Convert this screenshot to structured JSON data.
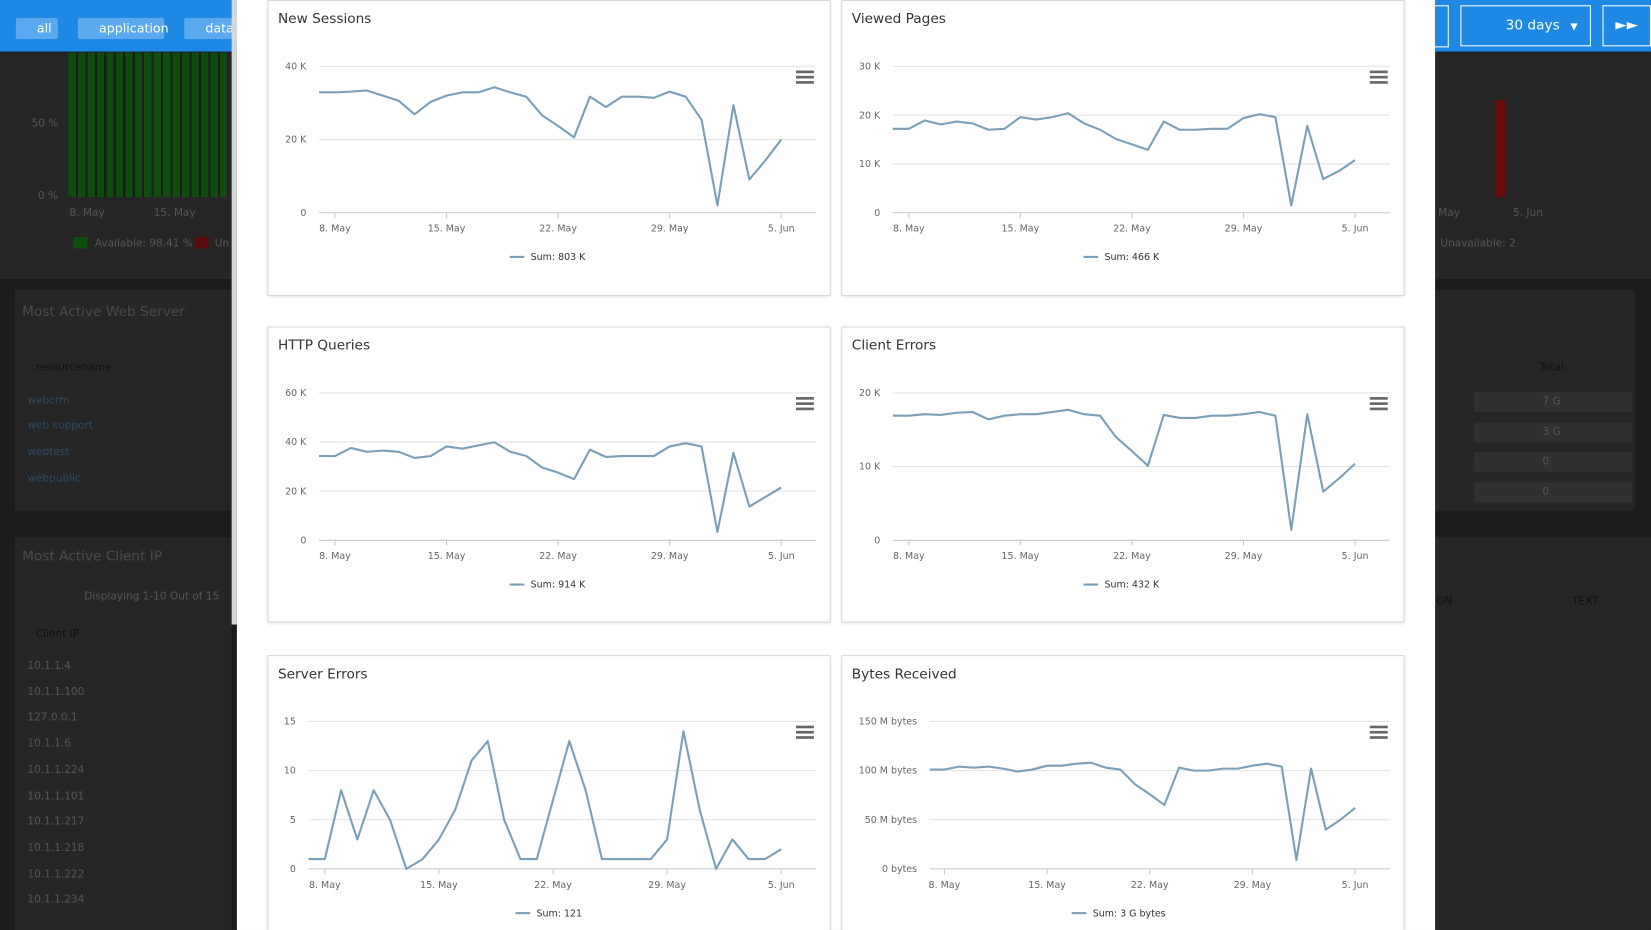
{
  "background": {
    "tags": [
      "all",
      "application",
      "datab"
    ],
    "range": "30 days",
    "availability": {
      "yticks": [
        "50 %",
        "0 %"
      ],
      "xticks": [
        "8. May",
        "15. May"
      ],
      "legend": [
        "Available: 98.41 %",
        "Un"
      ],
      "right_xticks": [
        "May",
        "5. Jun"
      ],
      "right_legend": "Unavailable: 2"
    },
    "web_server": {
      "title": "Most Active Web Server",
      "column": "resourcename",
      "rows": [
        "webcrm",
        "web support",
        "webtest",
        "webpublic"
      ],
      "total_header": "Total",
      "totals": [
        "7 G",
        "3 G",
        "0",
        "0"
      ]
    },
    "client_ip": {
      "title": "Most Active Client IP",
      "paging": "Displaying 1-10 Out of 15",
      "column": "Client IP",
      "rows": [
        "10.1.1.4",
        "10.1.1.100",
        "127.0.0.1",
        "10.1.1.6",
        "10.1.1.224",
        "10.1.1.101",
        "10.1.1.217",
        "10.1.1.218",
        "10.1.1.222",
        "10.1.1.234"
      ],
      "right_columns": [
        "ON",
        "TEXT"
      ]
    }
  },
  "chart_data": [
    {
      "type": "line",
      "title": "New Sessions",
      "categories": [
        null,
        "8. May",
        null,
        null,
        null,
        null,
        null,
        null,
        "15. May",
        null,
        null,
        null,
        null,
        null,
        null,
        "22. May",
        null,
        null,
        null,
        null,
        null,
        null,
        "29. May",
        null,
        null,
        null,
        null,
        null,
        null,
        "5. Jun"
      ],
      "series": [
        {
          "name": "Sum: 803 K",
          "color": "#7b9fb6",
          "values": [
            32900,
            32900,
            33100,
            33400,
            32000,
            30600,
            26900,
            30300,
            32000,
            32900,
            32900,
            34300,
            32900,
            31700,
            26600,
            23700,
            20600,
            31700,
            28900,
            31700,
            31700,
            31400,
            33100,
            31700,
            25400,
            2000,
            29400,
            9100,
            14300,
            20000
          ]
        }
      ],
      "ylim": [
        0,
        40000
      ],
      "yticks": [
        0,
        {
          "value": 20000,
          "label": "20 K"
        },
        {
          "value": 40000,
          "label": "40 K"
        }
      ],
      "grid": true,
      "legend": "bottom"
    },
    {
      "type": "line",
      "title": "Viewed Pages",
      "categories": [
        null,
        "8. May",
        null,
        null,
        null,
        null,
        null,
        null,
        "15. May",
        null,
        null,
        null,
        null,
        null,
        null,
        "22. May",
        null,
        null,
        null,
        null,
        null,
        null,
        "29. May",
        null,
        null,
        null,
        null,
        null,
        null,
        "5. Jun"
      ],
      "series": [
        {
          "name": "Sum: 466 K",
          "color": "#7b9fb6",
          "values": [
            17200,
            17200,
            18900,
            18100,
            18700,
            18300,
            17000,
            17200,
            19600,
            19100,
            19600,
            20400,
            18300,
            17000,
            15100,
            14000,
            12900,
            18700,
            17000,
            17000,
            17200,
            17200,
            19400,
            20200,
            19600,
            1500,
            17800,
            6900,
            8600,
            10800
          ]
        }
      ],
      "ylim": [
        0,
        30000
      ],
      "yticks": [
        0,
        {
          "value": 10000,
          "label": "10 K"
        },
        {
          "value": 20000,
          "label": "20 K"
        },
        {
          "value": 30000,
          "label": "30 K"
        }
      ],
      "grid": true,
      "legend": "bottom"
    },
    {
      "type": "line",
      "title": "HTTP Queries",
      "categories": [
        null,
        "8. May",
        null,
        null,
        null,
        null,
        null,
        null,
        "15. May",
        null,
        null,
        null,
        null,
        null,
        null,
        "22. May",
        null,
        null,
        null,
        null,
        null,
        null,
        "29. May",
        null,
        null,
        null,
        null,
        null,
        null,
        "5. Jun"
      ],
      "series": [
        {
          "name": "Sum: 914 K",
          "color": "#7b9fb6",
          "values": [
            34300,
            34300,
            37600,
            36000,
            36500,
            36000,
            33500,
            34300,
            38200,
            37300,
            38600,
            39900,
            36000,
            34300,
            29600,
            27500,
            24900,
            36900,
            33900,
            34300,
            34300,
            34300,
            38200,
            39500,
            38200,
            3400,
            35600,
            13700,
            17600,
            21500
          ]
        }
      ],
      "ylim": [
        0,
        60000
      ],
      "yticks": [
        0,
        {
          "value": 20000,
          "label": "20 K"
        },
        {
          "value": 40000,
          "label": "40 K"
        },
        {
          "value": 60000,
          "label": "60 K"
        }
      ],
      "grid": true,
      "legend": "bottom"
    },
    {
      "type": "line",
      "title": "Client Errors",
      "categories": [
        null,
        "8. May",
        null,
        null,
        null,
        null,
        null,
        null,
        "15. May",
        null,
        null,
        null,
        null,
        null,
        null,
        "22. May",
        null,
        null,
        null,
        null,
        null,
        null,
        "29. May",
        null,
        null,
        null,
        null,
        null,
        null,
        "5. Jun"
      ],
      "series": [
        {
          "name": "Sum: 432 K",
          "color": "#7b9fb6",
          "values": [
            16900,
            16900,
            17100,
            17000,
            17300,
            17400,
            16400,
            16900,
            17100,
            17100,
            17400,
            17700,
            17100,
            16900,
            14000,
            12100,
            10100,
            17000,
            16600,
            16600,
            16900,
            16900,
            17100,
            17400,
            16900,
            1400,
            17100,
            6600,
            8400,
            10400
          ]
        }
      ],
      "ylim": [
        0,
        20000
      ],
      "yticks": [
        0,
        {
          "value": 10000,
          "label": "10 K"
        },
        {
          "value": 20000,
          "label": "20 K"
        }
      ],
      "grid": true,
      "legend": "bottom"
    },
    {
      "type": "line",
      "title": "Server Errors",
      "categories": [
        null,
        "8. May",
        null,
        null,
        null,
        null,
        null,
        null,
        "15. May",
        null,
        null,
        null,
        null,
        null,
        null,
        "22. May",
        null,
        null,
        null,
        null,
        null,
        null,
        "29. May",
        null,
        null,
        null,
        null,
        null,
        null,
        "5. Jun"
      ],
      "series": [
        {
          "name": "Sum: 121",
          "color": "#7b9fb6",
          "values": [
            1,
            1,
            8,
            3,
            8,
            5,
            0,
            1,
            3,
            6,
            11,
            13,
            5,
            1,
            1,
            7,
            13,
            8,
            1,
            1,
            1,
            1,
            3,
            14,
            6,
            0,
            3,
            1,
            1,
            2
          ]
        }
      ],
      "ylim": [
        0,
        15
      ],
      "yticks": [
        0,
        5,
        10,
        15
      ],
      "grid": true,
      "legend": "bottom"
    },
    {
      "type": "line",
      "title": "Bytes Received",
      "categories": [
        null,
        "8. May",
        null,
        null,
        null,
        null,
        null,
        null,
        "15. May",
        null,
        null,
        null,
        null,
        null,
        null,
        "22. May",
        null,
        null,
        null,
        null,
        null,
        null,
        "29. May",
        null,
        null,
        null,
        null,
        null,
        null,
        "5. Jun"
      ],
      "series": [
        {
          "name": "Sum: 3 G bytes",
          "color": "#7b9fb6",
          "values": [
            101000000,
            101000000,
            104000000,
            103000000,
            104000000,
            102000000,
            99000000,
            101000000,
            105000000,
            105000000,
            107000000,
            108000000,
            103000000,
            101000000,
            86000000,
            76000000,
            65000000,
            103000000,
            100000000,
            100000000,
            102000000,
            102000000,
            105000000,
            107000000,
            104000000,
            9000000,
            102000000,
            40000000,
            50000000,
            62000000
          ]
        }
      ],
      "ylim": [
        0,
        150000000
      ],
      "yticks": [
        {
          "value": 0,
          "label": "0 bytes"
        },
        {
          "value": 50000000,
          "label": "50 M bytes"
        },
        {
          "value": 100000000,
          "label": "100 M bytes"
        },
        {
          "value": 150000000,
          "label": "150 M bytes"
        }
      ],
      "grid": true,
      "legend": "bottom"
    }
  ]
}
